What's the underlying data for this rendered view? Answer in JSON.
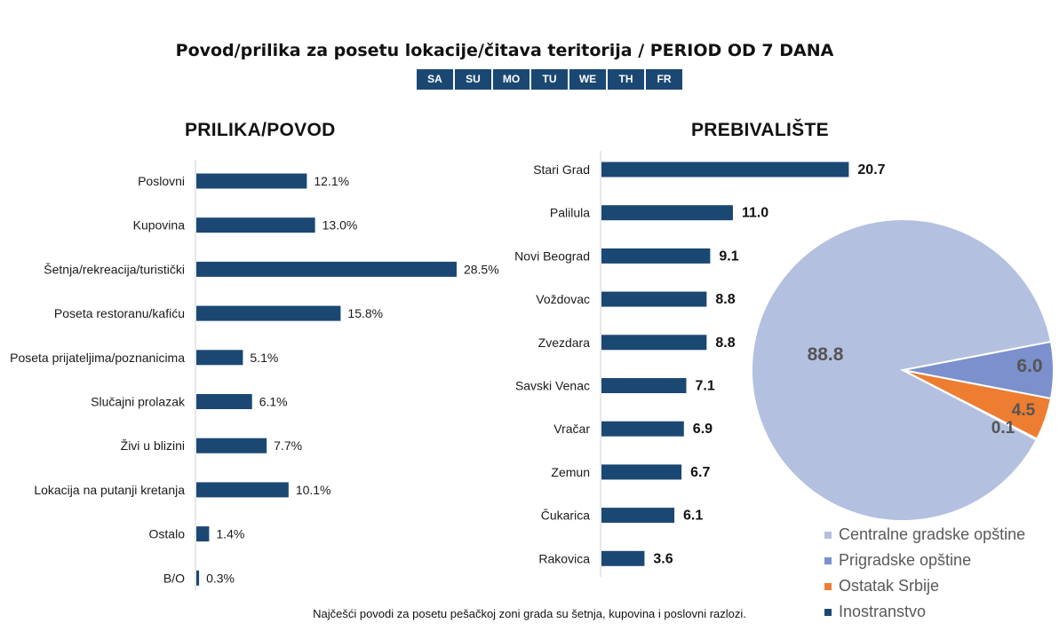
{
  "page": {
    "title": "Povod/prilika za posetu lokacije/čitava teritorija / PERIOD OD 7 DANA",
    "days": [
      "SA",
      "SU",
      "MO",
      "TU",
      "WE",
      "TH",
      "FR"
    ],
    "footnote": "Najčešći povodi za posetu pešačkoj zoni grada su šetnja, kupovina i poslovni razlozi."
  },
  "chart_data": [
    {
      "type": "bar",
      "orientation": "horizontal",
      "title": "PRILIKA/POVOD",
      "categories": [
        "Poslovni",
        "Kupovina",
        "Šetnja/rekreacija/turistički",
        "Poseta restoranu/kafiću",
        "Poseta prijateljima/poznanicima",
        "Slučajni prolazak",
        "Živi u blizini",
        "Lokacija na putanji kretanja",
        "Ostalo",
        "B/O"
      ],
      "values": [
        12.1,
        13.0,
        28.5,
        15.8,
        5.1,
        6.1,
        7.7,
        10.1,
        1.4,
        0.3
      ],
      "value_labels": [
        "12.1%",
        "13.0%",
        "28.5%",
        "15.8%",
        "5.1%",
        "6.1%",
        "7.7%",
        "10.1%",
        "1.4%",
        "0.3%"
      ],
      "unit": "%",
      "color": "#1b4873"
    },
    {
      "type": "bar",
      "orientation": "horizontal",
      "title": "PREBIVALIŠTE",
      "categories": [
        "Stari Grad",
        "Palilula",
        "Novi Beograd",
        "Voždovac",
        "Zvezdara",
        "Savski Venac",
        "Vračar",
        "Zemun",
        "Čukarica",
        "Rakovica"
      ],
      "values": [
        20.7,
        11.0,
        9.1,
        8.8,
        8.8,
        7.1,
        6.9,
        6.7,
        6.1,
        3.6
      ],
      "value_labels": [
        "20.7",
        "11.0",
        "9.1",
        "8.8",
        "8.8",
        "7.1",
        "6.9",
        "6.7",
        "6.1",
        "3.6"
      ],
      "color": "#1b4873"
    },
    {
      "type": "pie",
      "labels": [
        "Centralne gradske opštine",
        "Prigradske opštine",
        "Ostatak Srbije",
        "Inostranstvo"
      ],
      "values": [
        88.8,
        6.0,
        4.5,
        0.1
      ],
      "value_labels": [
        "88.8",
        "6.0",
        "4.5",
        "0.1"
      ],
      "colors": [
        "#b4c0e0",
        "#7b90cc",
        "#ed7d31",
        "#1b4873"
      ],
      "legend_position": "bottom-right"
    }
  ]
}
